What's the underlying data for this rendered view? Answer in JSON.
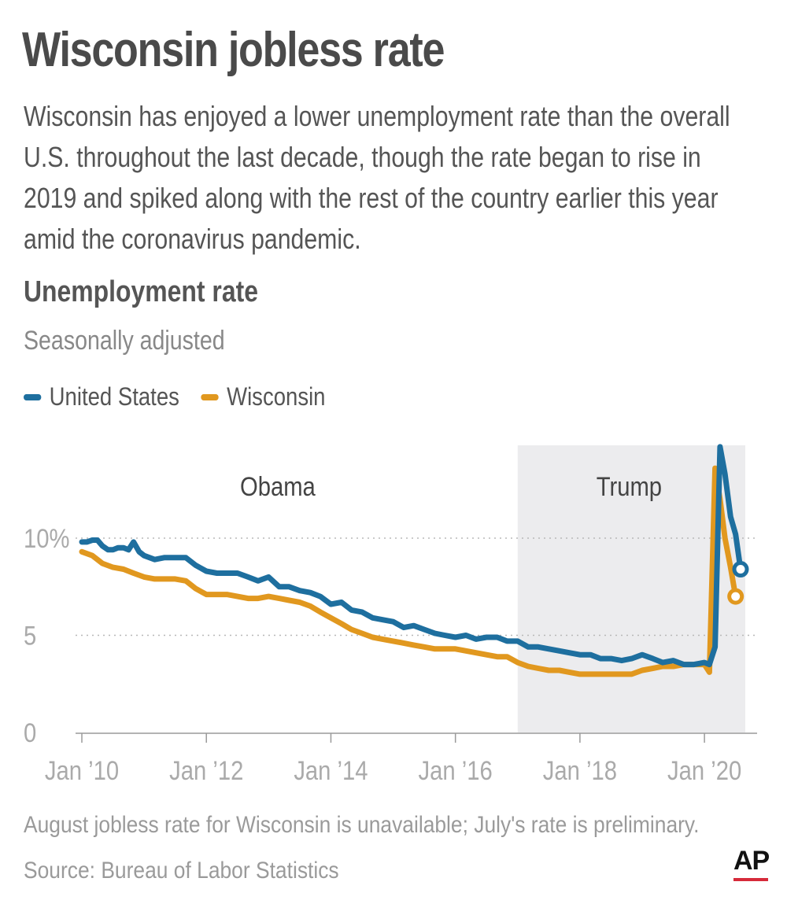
{
  "title": "Wisconsin jobless rate",
  "intro": "Wisconsin has enjoyed a lower unemployment rate than the overall U.S. throughout the last decade, though the rate began to rise in 2019 and spiked along with the rest of the country earlier this year amid the coronavirus pandemic.",
  "subtitle": "Unemployment rate",
  "subnote": "Seasonally adjusted",
  "legend": [
    {
      "name": "United States",
      "color": "#1e6f9f"
    },
    {
      "name": "Wisconsin",
      "color": "#e1981f"
    }
  ],
  "note": "August jobless rate for Wisconsin is unavailable; July's rate is preliminary.",
  "source": "Source:  Bureau of Labor Statistics",
  "logo": "AP",
  "chart_data": {
    "type": "line",
    "ylim": [
      0,
      14.7
    ],
    "yticks": [
      {
        "value": 0,
        "label": "0"
      },
      {
        "value": 5,
        "label": "5"
      },
      {
        "value": 10,
        "label": "10%"
      }
    ],
    "xticks": [
      {
        "value": 2010,
        "label": "Jan ’10"
      },
      {
        "value": 2012,
        "label": "Jan ’12"
      },
      {
        "value": 2014,
        "label": "Jan ’14"
      },
      {
        "value": 2016,
        "label": "Jan ’16"
      },
      {
        "value": 2018,
        "label": "Jan ’18"
      },
      {
        "value": 2020,
        "label": "Jan ’20"
      }
    ],
    "xlim": [
      2009.95,
      2020.75
    ],
    "periods": [
      {
        "label": "Obama",
        "start": 2009.95,
        "end": 2017.0,
        "shaded": false
      },
      {
        "label": "Trump",
        "start": 2017.0,
        "end": 2020.58,
        "shaded": true
      }
    ],
    "series": [
      {
        "name": "United States",
        "color": "#1e6f9f",
        "x": [
          2010.0,
          2010.08,
          2010.17,
          2010.25,
          2010.33,
          2010.42,
          2010.5,
          2010.58,
          2010.67,
          2010.75,
          2010.83,
          2010.92,
          2011.0,
          2011.17,
          2011.33,
          2011.5,
          2011.67,
          2011.83,
          2012.0,
          2012.17,
          2012.33,
          2012.5,
          2012.67,
          2012.83,
          2013.0,
          2013.17,
          2013.33,
          2013.5,
          2013.67,
          2013.83,
          2014.0,
          2014.17,
          2014.33,
          2014.5,
          2014.67,
          2014.83,
          2015.0,
          2015.17,
          2015.33,
          2015.5,
          2015.67,
          2015.83,
          2016.0,
          2016.17,
          2016.33,
          2016.5,
          2016.67,
          2016.83,
          2017.0,
          2017.17,
          2017.33,
          2017.5,
          2017.67,
          2017.83,
          2018.0,
          2018.17,
          2018.33,
          2018.5,
          2018.67,
          2018.83,
          2019.0,
          2019.17,
          2019.33,
          2019.5,
          2019.67,
          2019.83,
          2020.0,
          2020.08,
          2020.17,
          2020.25,
          2020.33,
          2020.42,
          2020.5,
          2020.58
        ],
        "values": [
          9.8,
          9.8,
          9.9,
          9.9,
          9.6,
          9.4,
          9.4,
          9.5,
          9.5,
          9.4,
          9.8,
          9.3,
          9.1,
          8.9,
          9.0,
          9.0,
          9.0,
          8.6,
          8.3,
          8.2,
          8.2,
          8.2,
          8.0,
          7.8,
          8.0,
          7.5,
          7.5,
          7.3,
          7.2,
          7.0,
          6.6,
          6.7,
          6.3,
          6.2,
          5.9,
          5.8,
          5.7,
          5.4,
          5.5,
          5.3,
          5.1,
          5.0,
          4.9,
          5.0,
          4.8,
          4.9,
          4.9,
          4.7,
          4.7,
          4.4,
          4.4,
          4.3,
          4.2,
          4.1,
          4.0,
          4.0,
          3.8,
          3.8,
          3.7,
          3.8,
          4.0,
          3.8,
          3.6,
          3.7,
          3.5,
          3.5,
          3.6,
          3.5,
          4.4,
          14.7,
          13.3,
          11.1,
          10.2,
          8.4
        ]
      },
      {
        "name": "Wisconsin",
        "color": "#e1981f",
        "x": [
          2010.0,
          2010.17,
          2010.33,
          2010.5,
          2010.67,
          2010.83,
          2011.0,
          2011.17,
          2011.33,
          2011.5,
          2011.67,
          2011.83,
          2012.0,
          2012.17,
          2012.33,
          2012.5,
          2012.67,
          2012.83,
          2013.0,
          2013.17,
          2013.33,
          2013.5,
          2013.67,
          2013.83,
          2014.0,
          2014.17,
          2014.33,
          2014.5,
          2014.67,
          2014.83,
          2015.0,
          2015.17,
          2015.33,
          2015.5,
          2015.67,
          2015.83,
          2016.0,
          2016.17,
          2016.33,
          2016.5,
          2016.67,
          2016.83,
          2017.0,
          2017.17,
          2017.33,
          2017.5,
          2017.67,
          2017.83,
          2018.0,
          2018.17,
          2018.33,
          2018.5,
          2018.67,
          2018.83,
          2019.0,
          2019.17,
          2019.33,
          2019.5,
          2019.67,
          2019.83,
          2020.0,
          2020.08,
          2020.17,
          2020.25,
          2020.33,
          2020.42,
          2020.5
        ],
        "values": [
          9.3,
          9.1,
          8.7,
          8.5,
          8.4,
          8.2,
          8.0,
          7.9,
          7.9,
          7.9,
          7.8,
          7.4,
          7.1,
          7.1,
          7.1,
          7.0,
          6.9,
          6.9,
          7.0,
          6.9,
          6.8,
          6.7,
          6.5,
          6.2,
          5.9,
          5.6,
          5.3,
          5.1,
          4.9,
          4.8,
          4.7,
          4.6,
          4.5,
          4.4,
          4.3,
          4.3,
          4.3,
          4.2,
          4.1,
          4.0,
          3.9,
          3.9,
          3.6,
          3.4,
          3.3,
          3.2,
          3.2,
          3.1,
          3.0,
          3.0,
          3.0,
          3.0,
          3.0,
          3.0,
          3.2,
          3.3,
          3.4,
          3.4,
          3.5,
          3.5,
          3.5,
          3.1,
          13.6,
          12.0,
          10.0,
          8.5,
          7.0
        ]
      }
    ]
  }
}
